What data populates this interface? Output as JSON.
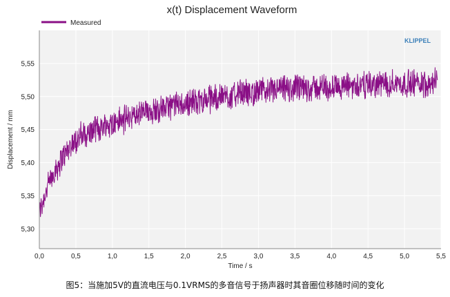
{
  "caption": "图5：当施加5V的直流电压与0.1VRMS的多音信号于扬声器时其音圈位移随时间的变化",
  "brand": "KLIPPEL",
  "colors": {
    "series": "#8a0f86",
    "plot_bg": "#f2f2f2",
    "grid": "#ffffff",
    "brand": "#3a7fb8"
  },
  "chart_data": {
    "type": "line",
    "title": "x(t) Displacement Waveform",
    "xlabel": "Time / s",
    "ylabel": "Displacement / mm",
    "xlim": [
      0,
      5.5
    ],
    "ylim": [
      5.27,
      5.6
    ],
    "x_ticks": [
      "0,0",
      "0,5",
      "1,0",
      "1,5",
      "2,0",
      "2,5",
      "3,0",
      "3,5",
      "4,0",
      "4,5",
      "5,0",
      "5,5"
    ],
    "x_tick_values": [
      0,
      0.5,
      1.0,
      1.5,
      2.0,
      2.5,
      3.0,
      3.5,
      4.0,
      4.5,
      5.0,
      5.5
    ],
    "y_ticks": [
      "5,30",
      "5,35",
      "5,40",
      "5,45",
      "5,50",
      "5,55"
    ],
    "y_tick_values": [
      5.3,
      5.35,
      5.4,
      5.45,
      5.5,
      5.55
    ],
    "grid": true,
    "legend": {
      "position": "top-left",
      "entries": [
        "Measured"
      ]
    },
    "series": [
      {
        "name": "Measured",
        "x_end": 5.45,
        "trend": [
          [
            0.0,
            5.325
          ],
          [
            0.1,
            5.36
          ],
          [
            0.2,
            5.385
          ],
          [
            0.3,
            5.405
          ],
          [
            0.4,
            5.42
          ],
          [
            0.5,
            5.435
          ],
          [
            0.7,
            5.447
          ],
          [
            1.0,
            5.46
          ],
          [
            1.5,
            5.478
          ],
          [
            2.0,
            5.49
          ],
          [
            2.5,
            5.5
          ],
          [
            3.0,
            5.508
          ],
          [
            3.5,
            5.512
          ],
          [
            4.0,
            5.515
          ],
          [
            4.5,
            5.518
          ],
          [
            5.0,
            5.52
          ],
          [
            5.45,
            5.522
          ]
        ],
        "noise_amplitude": 0.018
      }
    ]
  }
}
